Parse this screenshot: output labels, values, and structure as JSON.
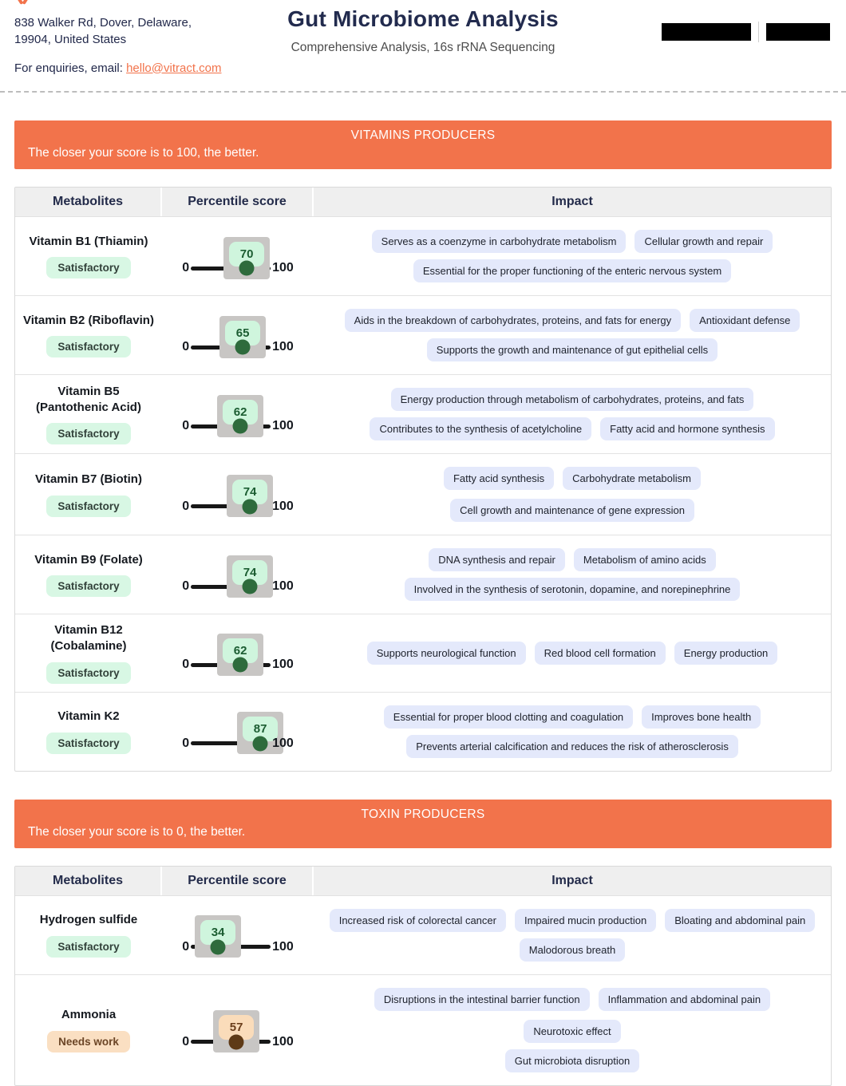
{
  "header": {
    "address_line1": "838 Walker Rd, Dover, Delaware,",
    "address_line2": "19904, United States",
    "enquiries_prefix": "For enquiries, email: ",
    "email": "hello@vitract.com",
    "title": "Gut Microbiome Analysis",
    "subtitle": "Comprehensive Analysis, 16s rRNA Sequencing"
  },
  "colors": {
    "accent_orange": "#f2734b",
    "navy": "#222b4e",
    "pill_bg": "#e4e9fb",
    "good_badge_bg": "#d8f7e4",
    "good_score_text": "#1b5c31",
    "good_dot": "#2e6b3c",
    "warn_badge_bg": "#fadfc2",
    "warn_score_text": "#6b3f1c",
    "warn_dot": "#5e3a17",
    "tooltip_backdrop": "#c8c6c4"
  },
  "slider": {
    "min": "0",
    "max": "100"
  },
  "sections": [
    {
      "id": "vitamins",
      "banner_title": "VITAMINS PRODUCERS",
      "banner_subtitle": "The closer your score is to 100, the better.",
      "columns": [
        "Metabolites",
        "Percentile score",
        "Impact"
      ],
      "rows": [
        {
          "name_lines": [
            "Vitamin B1 (Thiamin)"
          ],
          "status": "Satisfactory",
          "status_type": "good",
          "score": 70,
          "impact_rows": [
            [
              "Serves as a coenzyme in carbohydrate metabolism",
              "Cellular growth and repair"
            ],
            [
              "Essential for the proper functioning of the enteric nervous system"
            ]
          ]
        },
        {
          "name_lines": [
            "Vitamin B2 (Riboflavin)"
          ],
          "status": "Satisfactory",
          "status_type": "good",
          "score": 65,
          "impact_rows": [
            [
              "Aids in the breakdown of carbohydrates, proteins, and fats for energy",
              "Antioxidant defense"
            ],
            [
              "Supports the growth and maintenance of gut epithelial cells"
            ]
          ]
        },
        {
          "name_lines": [
            "Vitamin B5",
            "(Pantothenic Acid)"
          ],
          "status": "Satisfactory",
          "status_type": "good",
          "score": 62,
          "impact_rows": [
            [
              "Energy production through metabolism of carbohydrates, proteins, and fats"
            ],
            [
              "Contributes to the synthesis of acetylcholine",
              "Fatty acid and hormone synthesis"
            ]
          ]
        },
        {
          "name_lines": [
            "Vitamin B7 (Biotin)"
          ],
          "status": "Satisfactory",
          "status_type": "good",
          "score": 74,
          "impact_rows": [
            [
              "Fatty acid synthesis",
              "Carbohydrate metabolism",
              "Cell growth and maintenance of gene expression"
            ]
          ]
        },
        {
          "name_lines": [
            "Vitamin B9 (Folate)"
          ],
          "status": "Satisfactory",
          "status_type": "good",
          "score": 74,
          "impact_rows": [
            [
              "DNA synthesis and repair",
              "Metabolism of amino acids"
            ],
            [
              "Involved in the synthesis of serotonin, dopamine, and norepinephrine"
            ]
          ]
        },
        {
          "name_lines": [
            "Vitamin B12",
            "(Cobalamine)"
          ],
          "status": "Satisfactory",
          "status_type": "good",
          "score": 62,
          "impact_rows": [
            [
              "Supports neurological function",
              "Red blood cell formation",
              "Energy production"
            ]
          ]
        },
        {
          "name_lines": [
            "Vitamin K2"
          ],
          "status": "Satisfactory",
          "status_type": "good",
          "score": 87,
          "impact_rows": [
            [
              "Essential for proper blood clotting and coagulation",
              "Improves bone health"
            ],
            [
              "Prevents arterial calcification and reduces the risk of atherosclerosis"
            ]
          ]
        }
      ]
    },
    {
      "id": "toxins",
      "banner_title": "TOXIN PRODUCERS",
      "banner_subtitle": "The closer your score is to 0, the better.",
      "columns": [
        "Metabolites",
        "Percentile score",
        "Impact"
      ],
      "rows": [
        {
          "name_lines": [
            "Hydrogen sulfide"
          ],
          "status": "Satisfactory",
          "status_type": "good",
          "score": 34,
          "impact_rows": [
            [
              "Increased risk of colorectal cancer",
              "Impaired mucin production",
              "Bloating and abdominal pain"
            ],
            [
              "Malodorous breath"
            ]
          ]
        },
        {
          "name_lines": [
            "Ammonia"
          ],
          "status": "Needs work",
          "status_type": "warn",
          "score": 57,
          "impact_rows": [
            [
              "Disruptions in the intestinal barrier function",
              "Inflammation and abdominal pain",
              "Neurotoxic effect"
            ],
            [
              "Gut microbiota disruption"
            ]
          ]
        }
      ]
    }
  ]
}
